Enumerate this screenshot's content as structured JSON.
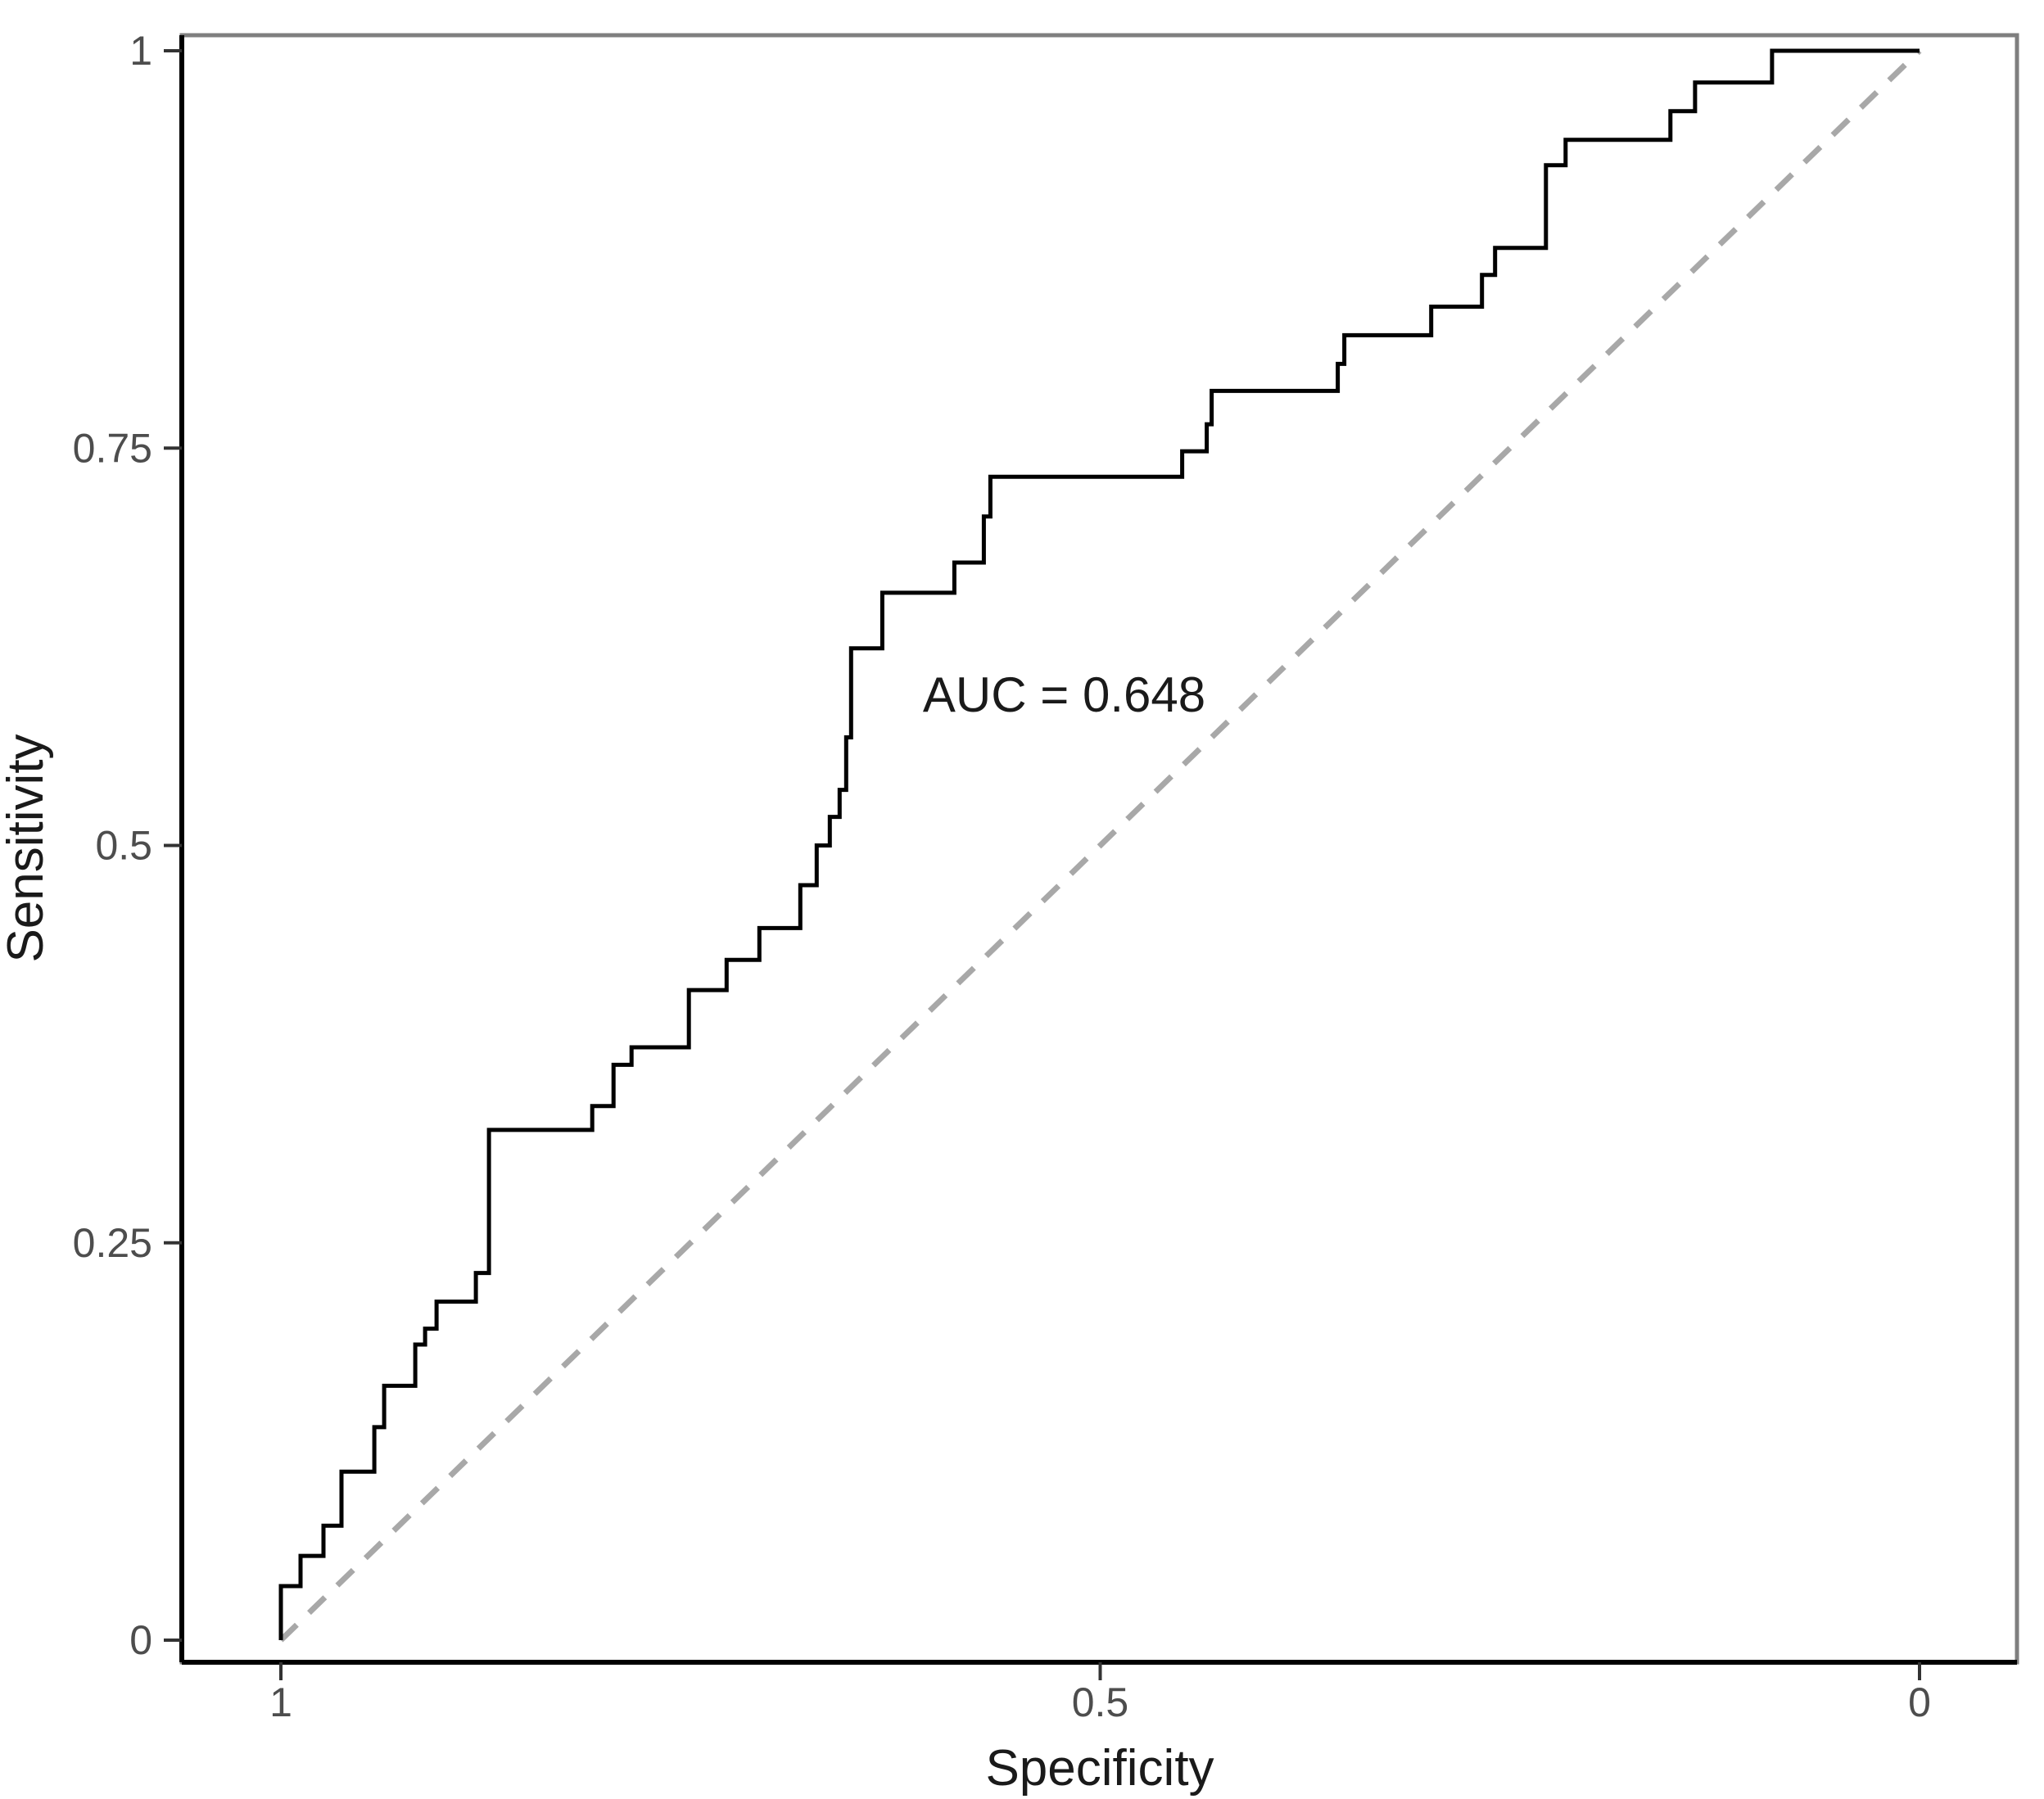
{
  "figure": {
    "background_color": "#ffffff"
  },
  "chart_data": {
    "type": "line",
    "subtype": "roc-curve",
    "title": "",
    "xlabel": "Specificity",
    "ylabel": "Sensitivity",
    "grid": false,
    "legend_position": "none",
    "x_axis": {
      "range": [
        1,
        0
      ],
      "reversed": true,
      "ticks": [
        {
          "value": 1,
          "label": "1"
        },
        {
          "value": 0.5,
          "label": "0.5"
        },
        {
          "value": 0,
          "label": "0"
        }
      ]
    },
    "y_axis": {
      "range": [
        0,
        1
      ],
      "ticks": [
        {
          "value": 0,
          "label": "0"
        },
        {
          "value": 0.25,
          "label": "0.25"
        },
        {
          "value": 0.5,
          "label": "0.5"
        },
        {
          "value": 0.75,
          "label": "0.75"
        },
        {
          "value": 1,
          "label": "1"
        }
      ]
    },
    "annotation": {
      "text": "AUC = 0.648",
      "x": 0.522,
      "y": 0.595
    },
    "colors": {
      "roc_curve": "#000000",
      "chance_line": "#a8a8a8",
      "panel_border": "#7f7f7f",
      "axis_line": "#000000",
      "tick_mark": "#333333",
      "tick_label": "#4d4d4d",
      "axis_title": "#1a1a1a"
    },
    "series": [
      {
        "name": "ROC curve",
        "style": "solid",
        "color": "#000000",
        "points": [
          [
            1.0,
            0.0
          ],
          [
            1.0,
            0.034
          ],
          [
            0.988,
            0.034
          ],
          [
            0.988,
            0.053
          ],
          [
            0.974,
            0.053
          ],
          [
            0.974,
            0.072
          ],
          [
            0.963,
            0.072
          ],
          [
            0.963,
            0.106
          ],
          [
            0.943,
            0.106
          ],
          [
            0.943,
            0.134
          ],
          [
            0.937,
            0.134
          ],
          [
            0.937,
            0.16
          ],
          [
            0.918,
            0.16
          ],
          [
            0.918,
            0.186
          ],
          [
            0.912,
            0.186
          ],
          [
            0.912,
            0.196
          ],
          [
            0.905,
            0.196
          ],
          [
            0.905,
            0.213
          ],
          [
            0.881,
            0.213
          ],
          [
            0.881,
            0.231
          ],
          [
            0.873,
            0.231
          ],
          [
            0.873,
            0.321
          ],
          [
            0.81,
            0.321
          ],
          [
            0.81,
            0.336
          ],
          [
            0.797,
            0.336
          ],
          [
            0.797,
            0.362
          ],
          [
            0.786,
            0.362
          ],
          [
            0.786,
            0.373
          ],
          [
            0.751,
            0.373
          ],
          [
            0.751,
            0.409
          ],
          [
            0.728,
            0.409
          ],
          [
            0.728,
            0.428
          ],
          [
            0.708,
            0.428
          ],
          [
            0.708,
            0.448
          ],
          [
            0.683,
            0.448
          ],
          [
            0.683,
            0.475
          ],
          [
            0.673,
            0.475
          ],
          [
            0.673,
            0.5
          ],
          [
            0.665,
            0.5
          ],
          [
            0.665,
            0.518
          ],
          [
            0.659,
            0.518
          ],
          [
            0.659,
            0.535
          ],
          [
            0.655,
            0.535
          ],
          [
            0.655,
            0.568
          ],
          [
            0.652,
            0.568
          ],
          [
            0.652,
            0.624
          ],
          [
            0.633,
            0.624
          ],
          [
            0.633,
            0.659
          ],
          [
            0.589,
            0.659
          ],
          [
            0.589,
            0.678
          ],
          [
            0.571,
            0.678
          ],
          [
            0.571,
            0.707
          ],
          [
            0.567,
            0.707
          ],
          [
            0.567,
            0.732
          ],
          [
            0.45,
            0.732
          ],
          [
            0.45,
            0.748
          ],
          [
            0.435,
            0.748
          ],
          [
            0.435,
            0.765
          ],
          [
            0.432,
            0.765
          ],
          [
            0.432,
            0.786
          ],
          [
            0.355,
            0.786
          ],
          [
            0.355,
            0.803
          ],
          [
            0.351,
            0.803
          ],
          [
            0.351,
            0.821
          ],
          [
            0.298,
            0.821
          ],
          [
            0.298,
            0.839
          ],
          [
            0.267,
            0.839
          ],
          [
            0.267,
            0.859
          ],
          [
            0.259,
            0.859
          ],
          [
            0.259,
            0.876
          ],
          [
            0.228,
            0.876
          ],
          [
            0.228,
            0.928
          ],
          [
            0.216,
            0.928
          ],
          [
            0.216,
            0.944
          ],
          [
            0.152,
            0.944
          ],
          [
            0.152,
            0.962
          ],
          [
            0.137,
            0.962
          ],
          [
            0.137,
            0.98
          ],
          [
            0.09,
            0.98
          ],
          [
            0.09,
            1.0
          ],
          [
            0.0,
            1.0
          ]
        ]
      },
      {
        "name": "Chance diagonal",
        "style": "dashed",
        "color": "#a8a8a8",
        "points": [
          [
            1,
            0
          ],
          [
            0,
            1
          ]
        ]
      }
    ]
  }
}
